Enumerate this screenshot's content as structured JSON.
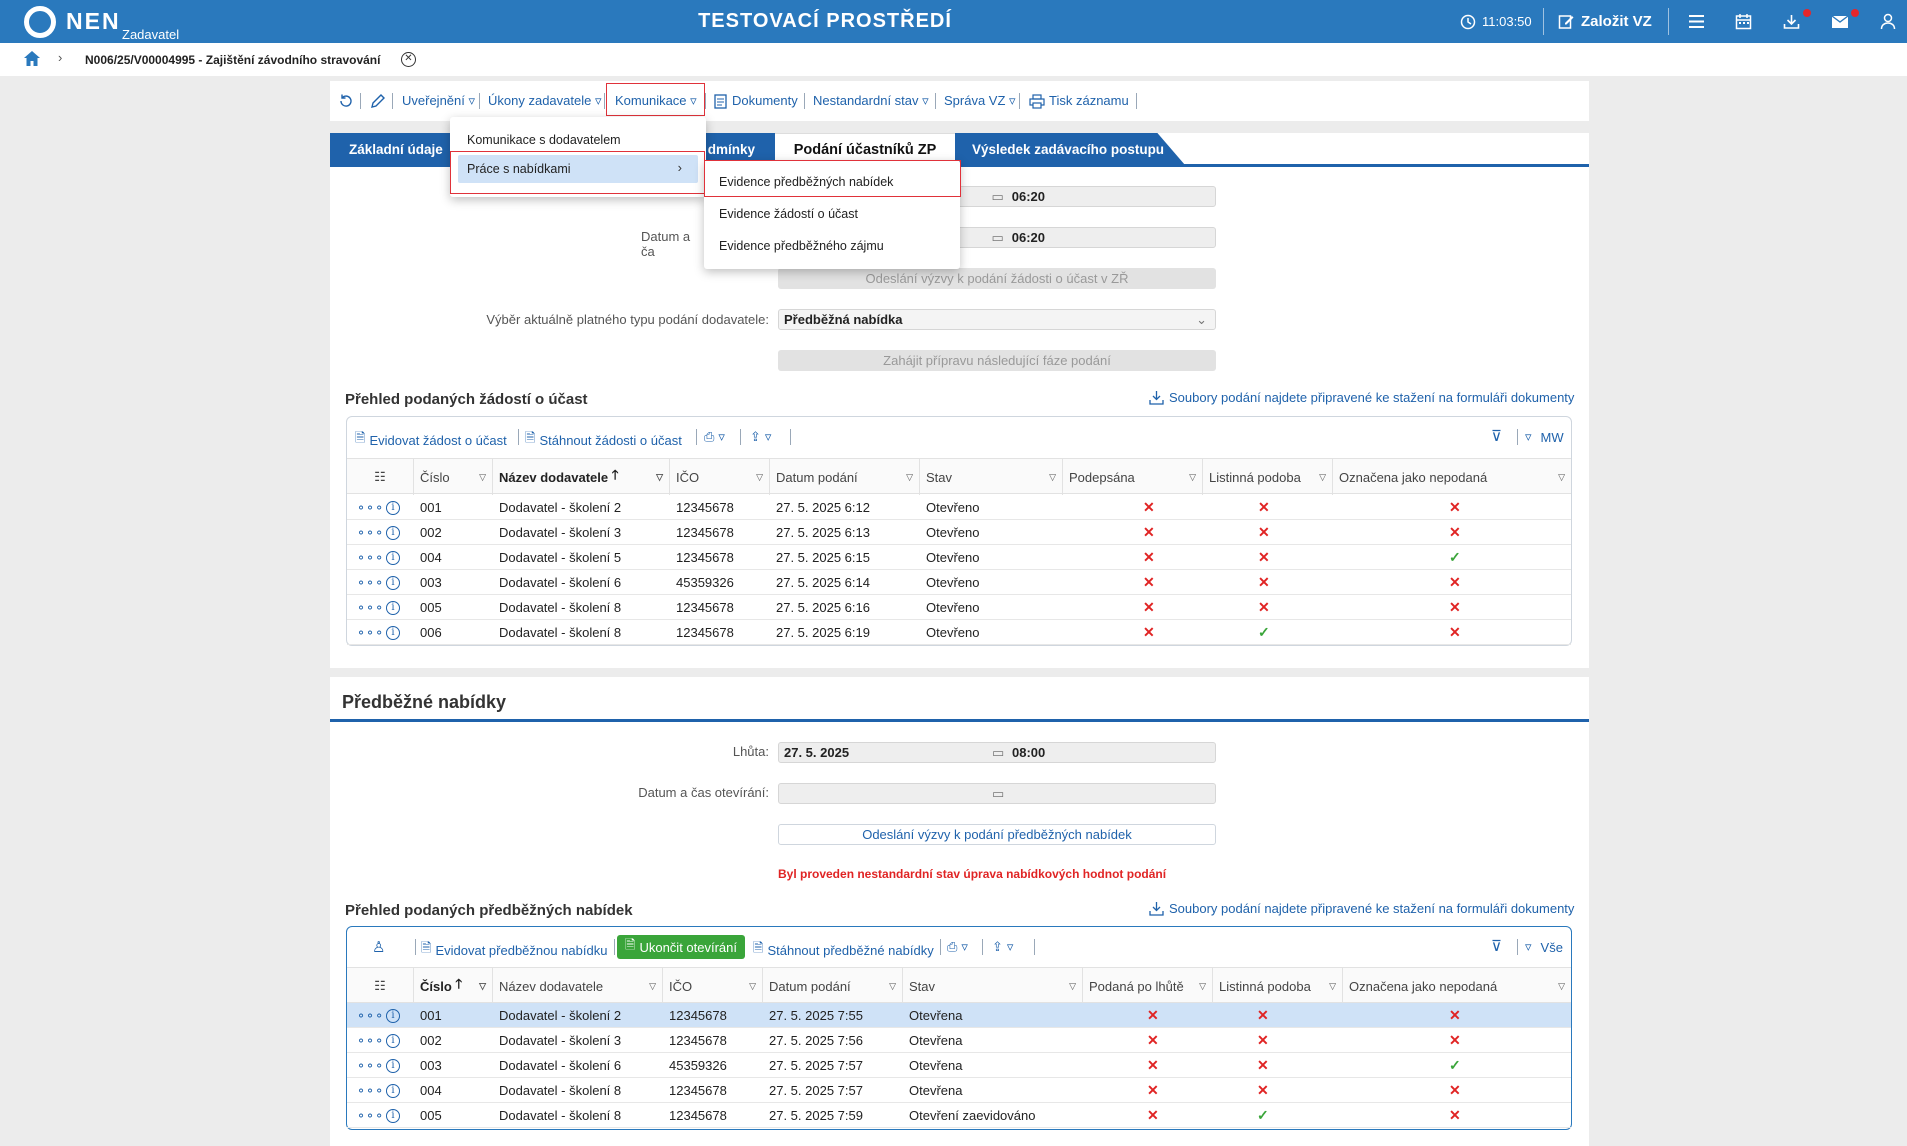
{
  "topbar": {
    "logo": "NEN",
    "logo_sub": "Zadavatel",
    "env_title": "TESTOVACÍ PROSTŘEDÍ",
    "time": "11:03:50",
    "create_label": "Založit VZ",
    "icons": [
      "clock-icon",
      "edit-icon",
      "menu-icon",
      "calendar-icon",
      "download-icon",
      "mail-icon",
      "user-icon"
    ]
  },
  "breadcrumb": {
    "label": "N006/25/V00004995 - Zajištění závodního stravování"
  },
  "toolbar": {
    "publish": "Uveřejnění",
    "acts": "Úkony zadavatele",
    "communication": "Komunikace",
    "documents": "Dokumenty",
    "nonstandard": "Nestandardní stav",
    "manage": "Správa VZ",
    "print": "Tisk záznamu"
  },
  "tabs": {
    "basic": "Základní údaje",
    "conditions": "dmínky",
    "submissions": "Podání účastníků ZP",
    "result": "Výsledek zadávacího postupu"
  },
  "menu": {
    "item1": "Komunikace s dodavatelem",
    "item2": "Práce s nabídkami",
    "sub1": "Evidence předběžných nabídek",
    "sub2": "Evidence žádostí o účast",
    "sub3": "Evidence předběžného zájmu"
  },
  "form1": {
    "time1": "06:20",
    "date_label_partial": "Datum a ča",
    "time2": "06:20",
    "send_btn": "Odeslání výzvy k podání žádosti o účast v ZŘ",
    "type_label": "Výběr aktuálně platného typu podání dodavatele:",
    "type_value": "Předběžná nabídka",
    "next_phase_btn": "Zahájit přípravu následující fáze podání"
  },
  "section1": {
    "title": "Přehled podaných žádostí o účast",
    "files_link": "Soubory podání najdete připravené ke stažení na formuláři dokumenty",
    "btn_register": "Evidovat žádost o účast",
    "btn_download": "Stáhnout žádosti o účast",
    "right_label": "MW",
    "columns": [
      "Číslo",
      "Název dodavatele",
      "IČO",
      "Datum podání",
      "Stav",
      "Podepsána",
      "Listinná podoba",
      "Označena jako nepodaná"
    ],
    "rows": [
      {
        "num": "001",
        "name": "Dodavatel - školení 2",
        "ico": "12345678",
        "date": "27. 5. 2025 6:12",
        "state": "Otevřeno",
        "signed": false,
        "paper": false,
        "unsub": false
      },
      {
        "num": "002",
        "name": "Dodavatel - školení 3",
        "ico": "12345678",
        "date": "27. 5. 2025 6:13",
        "state": "Otevřeno",
        "signed": false,
        "paper": false,
        "unsub": false
      },
      {
        "num": "004",
        "name": "Dodavatel - školení 5",
        "ico": "12345678",
        "date": "27. 5. 2025 6:15",
        "state": "Otevřeno",
        "signed": false,
        "paper": false,
        "unsub": true
      },
      {
        "num": "003",
        "name": "Dodavatel - školení 6",
        "ico": "45359326",
        "date": "27. 5. 2025 6:14",
        "state": "Otevřeno",
        "signed": false,
        "paper": false,
        "unsub": false
      },
      {
        "num": "005",
        "name": "Dodavatel - školení 8",
        "ico": "12345678",
        "date": "27. 5. 2025 6:16",
        "state": "Otevřeno",
        "signed": false,
        "paper": false,
        "unsub": false
      },
      {
        "num": "006",
        "name": "Dodavatel - školení 8",
        "ico": "12345678",
        "date": "27. 5. 2025 6:19",
        "state": "Otevřeno",
        "signed": false,
        "paper": true,
        "unsub": false
      }
    ]
  },
  "section2": {
    "heading": "Předběžné nabídky",
    "deadline_label": "Lhůta:",
    "deadline_date": "27. 5. 2025",
    "deadline_time": "08:00",
    "open_label": "Datum a čas otevírání:",
    "send_btn": "Odeslání výzvy k podání předběžných nabídek",
    "warning": "Byl proveden nestandardní stav úprava nabídkových hodnot podání",
    "title": "Přehled podaných předběžných nabídek",
    "files_link": "Soubory podání najdete připravené ke stažení na formuláři dokumenty",
    "btn_register": "Evidovat předběžnou nabídku",
    "btn_finish": "Ukončit otevírání",
    "btn_download": "Stáhnout předběžné nabídky",
    "right_label": "Vše",
    "columns": [
      "Číslo",
      "Název dodavatele",
      "IČO",
      "Datum podání",
      "Stav",
      "Podaná po lhůtě",
      "Listinná podoba",
      "Označena jako nepodaná"
    ],
    "rows": [
      {
        "num": "001",
        "name": "Dodavatel - školení 2",
        "ico": "12345678",
        "date": "27. 5. 2025 7:55",
        "state": "Otevřena",
        "late": false,
        "paper": false,
        "unsub": false
      },
      {
        "num": "002",
        "name": "Dodavatel - školení 3",
        "ico": "12345678",
        "date": "27. 5. 2025 7:56",
        "state": "Otevřena",
        "late": false,
        "paper": false,
        "unsub": false
      },
      {
        "num": "003",
        "name": "Dodavatel - školení 6",
        "ico": "45359326",
        "date": "27. 5. 2025 7:57",
        "state": "Otevřena",
        "late": false,
        "paper": false,
        "unsub": true
      },
      {
        "num": "004",
        "name": "Dodavatel - školení 8",
        "ico": "12345678",
        "date": "27. 5. 2025 7:57",
        "state": "Otevřena",
        "late": false,
        "paper": false,
        "unsub": false
      },
      {
        "num": "005",
        "name": "Dodavatel - školení 8",
        "ico": "12345678",
        "date": "27. 5. 2025 7:59",
        "state": "Otevření zaevidováno",
        "late": false,
        "paper": true,
        "unsub": false
      }
    ]
  },
  "colors": {
    "brand": "#2a79bd",
    "link": "#1f62ab",
    "tab_dark": "#1f62ab",
    "selected_row": "#cfe2f7",
    "green_btn": "#3aa53a",
    "warning": "#e02424"
  }
}
